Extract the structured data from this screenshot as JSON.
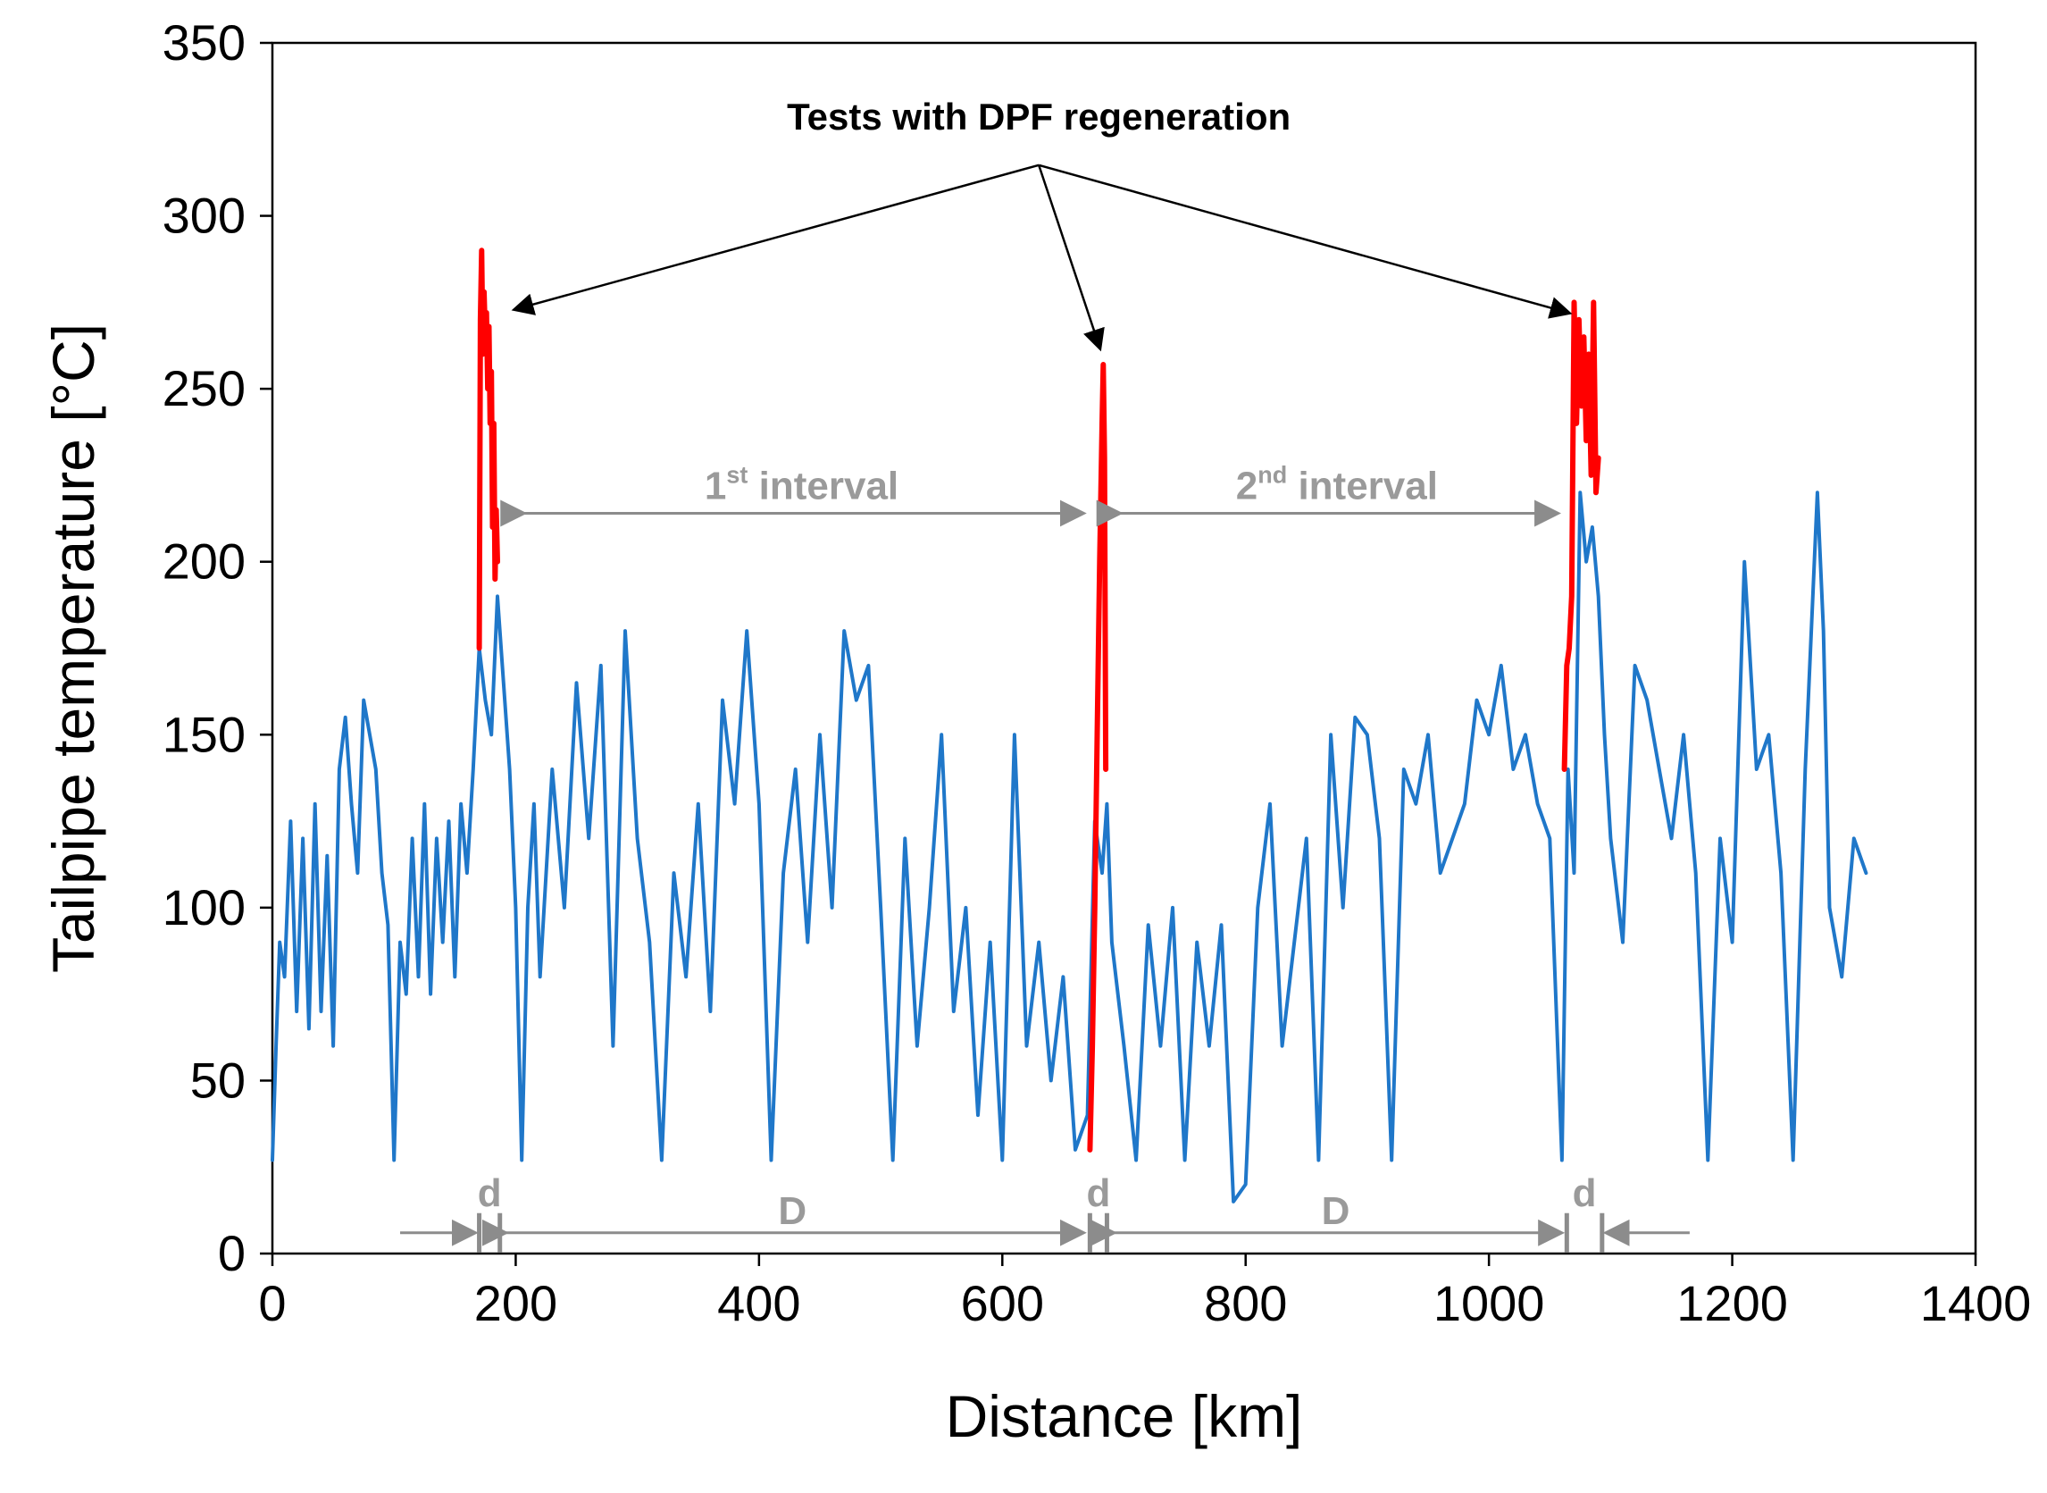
{
  "chart_data": {
    "type": "line",
    "title": "",
    "xlabel": "Distance [km]",
    "ylabel": "Tailpipe temperature [°C]",
    "xlim": [
      0,
      1400
    ],
    "ylim": [
      0,
      350
    ],
    "xticks": [
      0,
      200,
      400,
      600,
      800,
      1000,
      1200,
      1400
    ],
    "yticks": [
      0,
      50,
      100,
      150,
      200,
      250,
      300,
      350
    ],
    "grid": false,
    "legend": "none",
    "colors": {
      "normal": "#1f77c9",
      "regeneration": "#ff0000",
      "annotation_gray": "#9a9a9a",
      "axis": "#000000"
    },
    "series": [
      {
        "name": "Tailpipe temperature",
        "color": "#1f77c9",
        "x": [
          0,
          3,
          6,
          10,
          15,
          20,
          25,
          30,
          35,
          40,
          45,
          50,
          55,
          60,
          65,
          70,
          75,
          80,
          85,
          90,
          95,
          100,
          105,
          110,
          115,
          120,
          125,
          130,
          135,
          140,
          145,
          150,
          155,
          160,
          165,
          170,
          175,
          180,
          185,
          190,
          195,
          200,
          205,
          210,
          215,
          220,
          230,
          240,
          250,
          260,
          270,
          280,
          290,
          300,
          310,
          320,
          330,
          340,
          350,
          360,
          370,
          380,
          390,
          400,
          410,
          420,
          430,
          440,
          450,
          460,
          470,
          480,
          490,
          500,
          510,
          520,
          530,
          540,
          550,
          560,
          570,
          580,
          590,
          600,
          610,
          620,
          630,
          640,
          650,
          660,
          670,
          676,
          682,
          686,
          690,
          700,
          710,
          720,
          730,
          740,
          750,
          760,
          770,
          780,
          790,
          800,
          810,
          820,
          830,
          840,
          850,
          860,
          870,
          880,
          890,
          900,
          910,
          920,
          930,
          940,
          950,
          960,
          970,
          980,
          990,
          1000,
          1010,
          1020,
          1030,
          1040,
          1050,
          1060,
          1065,
          1070,
          1075,
          1080,
          1085,
          1090,
          1095,
          1100,
          1110,
          1120,
          1130,
          1140,
          1150,
          1160,
          1170,
          1180,
          1190,
          1200,
          1210,
          1220,
          1230,
          1240,
          1250,
          1260,
          1270,
          1275,
          1280,
          1290,
          1300,
          1310
        ],
        "y": [
          27,
          60,
          90,
          80,
          125,
          70,
          120,
          65,
          130,
          70,
          115,
          60,
          140,
          155,
          130,
          110,
          160,
          150,
          140,
          110,
          95,
          27,
          90,
          75,
          120,
          80,
          130,
          75,
          120,
          90,
          125,
          80,
          130,
          110,
          140,
          175,
          160,
          150,
          190,
          165,
          140,
          100,
          27,
          100,
          130,
          80,
          140,
          100,
          165,
          120,
          170,
          60,
          180,
          120,
          90,
          27,
          110,
          80,
          130,
          70,
          160,
          130,
          180,
          130,
          27,
          110,
          140,
          90,
          150,
          100,
          180,
          160,
          170,
          100,
          27,
          120,
          60,
          100,
          150,
          70,
          100,
          40,
          90,
          27,
          150,
          60,
          90,
          50,
          80,
          30,
          40,
          125,
          110,
          130,
          90,
          60,
          27,
          95,
          60,
          100,
          27,
          90,
          60,
          95,
          15,
          20,
          100,
          130,
          60,
          90,
          120,
          27,
          150,
          100,
          155,
          150,
          120,
          27,
          140,
          130,
          150,
          110,
          120,
          130,
          160,
          150,
          170,
          140,
          150,
          130,
          120,
          27,
          140,
          110,
          220,
          200,
          210,
          190,
          150,
          120,
          90,
          170,
          160,
          140,
          120,
          150,
          110,
          27,
          120,
          90,
          200,
          140,
          150,
          110,
          27,
          140,
          220,
          180,
          100,
          80,
          120,
          110
        ]
      },
      {
        "name": "Test with DPF regeneration (1)",
        "color": "#ff0000",
        "x": [
          170,
          171,
          172,
          173,
          174,
          175,
          176,
          177,
          178,
          179,
          180,
          181,
          182,
          183,
          184,
          185
        ],
        "y": [
          175,
          270,
          290,
          260,
          278,
          265,
          272,
          250,
          268,
          240,
          255,
          210,
          240,
          195,
          215,
          200
        ]
      },
      {
        "name": "Test with DPF regeneration (2)",
        "color": "#ff0000",
        "x": [
          672,
          674,
          676,
          678,
          680,
          682,
          683,
          684,
          685
        ],
        "y": [
          30,
          60,
          100,
          150,
          200,
          240,
          257,
          230,
          140
        ]
      },
      {
        "name": "Test with DPF regeneration (3)",
        "color": "#ff0000",
        "x": [
          1062,
          1064,
          1066,
          1068,
          1070,
          1072,
          1074,
          1076,
          1078,
          1080,
          1082,
          1084,
          1086,
          1088,
          1090
        ],
        "y": [
          140,
          170,
          175,
          190,
          275,
          240,
          270,
          245,
          265,
          235,
          260,
          225,
          275,
          220,
          230
        ]
      }
    ],
    "annotations": {
      "title": "Tests with DPF regeneration",
      "interval1_num": "1",
      "interval1_sup": "st",
      "interval1_word": " interval",
      "interval2_num": "2",
      "interval2_sup": "nd",
      "interval2_word": " interval",
      "small_d": "d",
      "big_D": "D",
      "regen_positions": [
        {
          "x": 178,
          "y": 290,
          "arrow_tip_x": 200,
          "arrow_tip_y": 273
        },
        {
          "x": 682,
          "y": 257,
          "arrow_tip_x": 680,
          "arrow_tip_y": 262
        },
        {
          "x": 1076,
          "y": 275,
          "arrow_tip_x": 1065,
          "arrow_tip_y": 272
        }
      ],
      "title_anchor": {
        "x": 630,
        "y": 325
      },
      "interval1_range": [
        205,
        665
      ],
      "interval2_range": [
        695,
        1055
      ],
      "interval_y": 214,
      "bracket_y": 6,
      "d_marks": [
        170,
        187,
        672,
        686,
        1064,
        1093
      ],
      "D_ranges": [
        [
          190,
          665
        ],
        [
          690,
          1058
        ]
      ],
      "outer_arrows": [
        [
          105,
          165
        ],
        [
          1165,
          1098
        ]
      ]
    }
  }
}
